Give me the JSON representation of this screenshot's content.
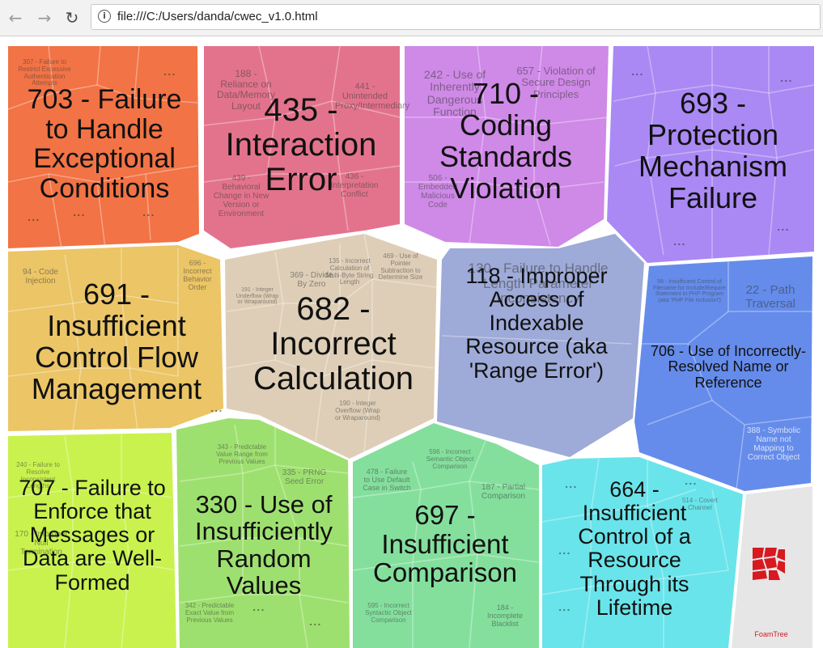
{
  "browser": {
    "back_icon": "arrow-left-icon",
    "forward_icon": "arrow-right-icon",
    "reload_icon": "reload-icon",
    "info_icon": "info-icon",
    "url": "file:///C:/Users/danda/cwec_v1.0.html"
  },
  "groups": [
    {
      "id": "g703",
      "label": "703 - Failure to Handle Exceptional Conditions",
      "color": "#f05a24"
    },
    {
      "id": "g435",
      "label": "435 - Interaction Error",
      "color": "#de5a78"
    },
    {
      "id": "g710",
      "label": "710 - Coding Standards Violation",
      "color": "#c774e3"
    },
    {
      "id": "g693",
      "label": "693 - Protection Mechanism Failure",
      "color": "#9b74f2"
    },
    {
      "id": "g691",
      "label": "691 - Insufficient Control Flow Management",
      "color": "#e8bb4b"
    },
    {
      "id": "g682",
      "label": "682 - Incorrect Calculation",
      "color": "#d8c5aa"
    },
    {
      "id": "g118",
      "label": "118 - Improper Access of Indexable Resource (aka 'Range Error')",
      "color": "#8d9bd1"
    },
    {
      "id": "g706",
      "label": "706 - Use of Incorrectly-Resolved Name or Reference",
      "color": "#4a78e8"
    },
    {
      "id": "g707",
      "label": "707 - Failure to Enforce that Messages or Data are Well-Formed",
      "color": "#bff02f"
    },
    {
      "id": "g330",
      "label": "330 - Use of Insufficiently Random Values",
      "color": "#8ddb56"
    },
    {
      "id": "g697",
      "label": "697 - Insufficient Comparison",
      "color": "#6fd98c"
    },
    {
      "id": "g664",
      "label": "664 - Insufficient Control of a Resource Through its Lifetime",
      "color": "#4fdfe6"
    }
  ],
  "subcells": {
    "s307": "307 - Failure to Restrict Excessive Authentication Attempts",
    "s188": "188 - Reliance on Data/Memory Layout",
    "s441": "441 - Unintended Proxy/Intermediary",
    "s439": "439 - Behavioral Change in New Version or Environment",
    "s436": "436 - Interpretation Conflict",
    "s242": "242 - Use of Inherently Dangerous Function",
    "s657": "657 - Violation of Secure Design Principles",
    "s506": "506 - Embedded Malicious Code",
    "s94": "94 - Code Injection",
    "s696": "696 - Incorrect Behavior Order",
    "s369": "369 - Divide By Zero",
    "s135": "135 - Incorrect Calculation of Multi-Byte String Length",
    "s469": "469 - Use of Pointer Subtraction to Determine Size",
    "s191": "191 - Integer Underflow (Wrap or Wraparound)",
    "s190": "190 - Integer Overflow (Wrap or Wraparound)",
    "s130": "130 - Failure to Handle Length Parameter Inconsistency",
    "s22": "22 - Path Traversal",
    "s98": "98 - Insufficient Control of Filename for Include/Require Statement in PHP Program (aka 'PHP File Inclusion')",
    "s388": "388 - Symbolic Name not Mapping to Correct Object",
    "s335": "335 - PRNG Seed Error",
    "s343": "343 - Predictable Value Range from Previous Values",
    "s342": "342 - Predictable Exact Value from Previous Values",
    "s596": "596 - Incorrect Semantic Object Comparison",
    "s478": "478 - Failure to Use Default Case in Switch",
    "s187": "187 - Partial Comparison",
    "s595": "595 - Incorrect Syntactic Object Comparison",
    "s184": "184 - Incomplete Blacklist",
    "s240": "240 - Failure to Resolve Inconsistent Lengths",
    "s170": "170 - Improper Null Termination",
    "s514": "514 - Covert Channel"
  },
  "logo_text": "FoamTree",
  "logo_icon": "foamtree-logo-icon"
}
